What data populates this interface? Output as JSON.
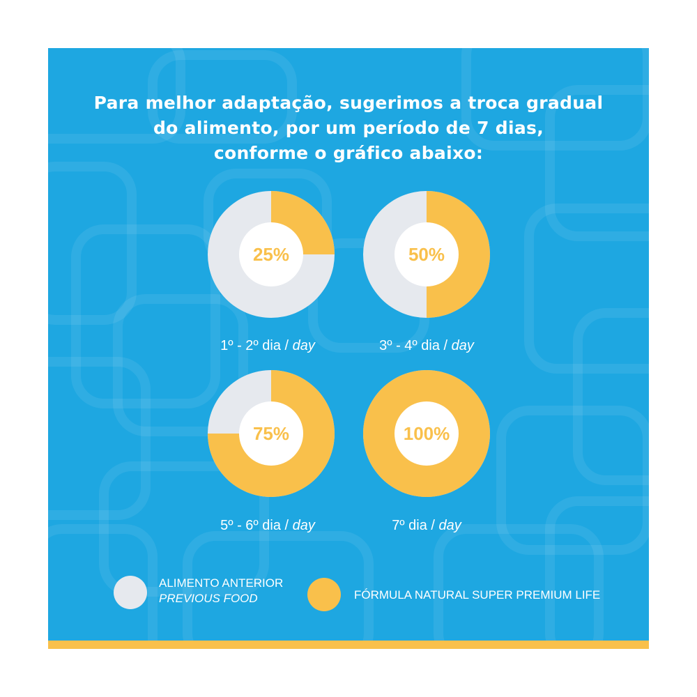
{
  "headline": {
    "line1": "Para melhor adaptação, sugerimos a troca gradual",
    "line2": "do alimento, por um período de 7 dias,",
    "line3": "conforme o gráfico abaixo:"
  },
  "colors": {
    "background": "#1ea7e1",
    "previous": "#e6e9ee",
    "new_food": "#f9c04b",
    "percent_text": "#f9c04b"
  },
  "chart_data": [
    {
      "type": "pie",
      "style": "donut",
      "label": "25%",
      "value": 25,
      "period": "1º - 2º dia",
      "unit": "day"
    },
    {
      "type": "pie",
      "style": "donut",
      "label": "50%",
      "value": 50,
      "period": "3º - 4º dia",
      "unit": "day"
    },
    {
      "type": "pie",
      "style": "donut",
      "label": "75%",
      "value": 75,
      "period": "5º - 6º dia",
      "unit": "day"
    },
    {
      "type": "pie",
      "style": "donut",
      "label": "100%",
      "value": 100,
      "period": "7º dia",
      "unit": "day"
    }
  ],
  "legend": {
    "previous_line1": "ALIMENTO ANTERIOR",
    "previous_line2": "PREVIOUS FOOD",
    "new_food": "FÓRMULA NATURAL SUPER PREMIUM LIFE"
  }
}
